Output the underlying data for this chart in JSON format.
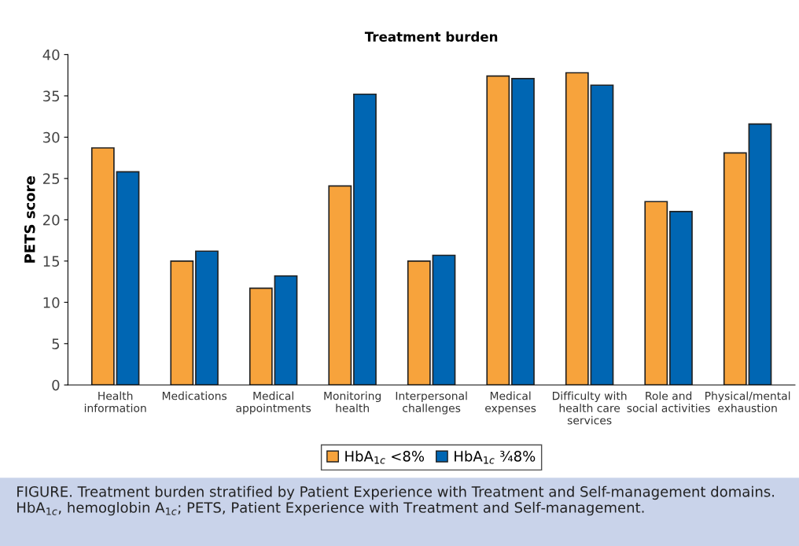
{
  "chart_data": {
    "type": "bar",
    "title": "Treatment burden",
    "ylabel": "PETS score",
    "categories": [
      "Health\ninformation",
      "Medications",
      "Medical\nappointments",
      "Monitoring\nhealth",
      "Interpersonal\nchallenges",
      "Medical\nexpenses",
      "Difficulty with\nhealth care\nservices",
      "Role and\nsocial activities",
      "Physical/mental\nexhaustion"
    ],
    "series": [
      {
        "name": "HbA$_{1c}$ <8%",
        "color": "#f7a33c",
        "values": [
          28.7,
          15.0,
          11.7,
          24.1,
          15.0,
          37.4,
          37.8,
          22.2,
          28.1
        ]
      },
      {
        "name": "HbA$_{1c}$ ¾8%",
        "color": "#0066b3",
        "values": [
          25.8,
          16.2,
          13.2,
          35.2,
          15.7,
          37.1,
          36.3,
          21.0,
          31.6
        ]
      }
    ],
    "ylim": [
      0,
      40
    ],
    "yticks": [
      0,
      5,
      10,
      15,
      20,
      25,
      30,
      35,
      40
    ],
    "grid": false,
    "legend": "bottom",
    "annotations": [
      "FIGURE. Treatment burden stratified by Patient Experience with Treatment and Self-management domains. HbA$_{1c}$, hemoglobin A$_{1c}$; PETS, Patient Experience with Treatment and Self-management."
    ]
  }
}
